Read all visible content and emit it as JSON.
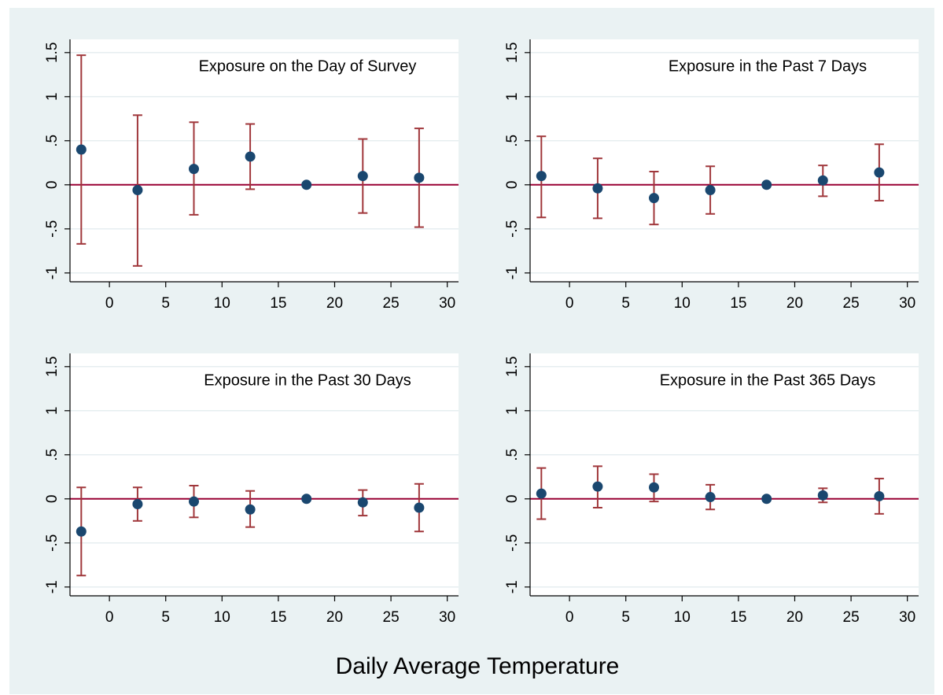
{
  "xlabel": "Daily Average Temperature",
  "chart_data": [
    {
      "type": "scatter",
      "title": "Exposure on the Day of Survey",
      "x": [
        -2.5,
        2.5,
        7.5,
        12.5,
        17.5,
        22.5,
        27.5
      ],
      "series": [
        {
          "color": "#1a476f",
          "error_color": "#a0373b",
          "values": [
            0.4,
            -0.06,
            0.18,
            0.32,
            0,
            0.1,
            0.08
          ],
          "ci_low": [
            -0.67,
            -0.92,
            -0.34,
            -0.05,
            null,
            -0.32,
            -0.48
          ],
          "ci_high": [
            1.47,
            0.79,
            0.71,
            0.69,
            null,
            0.52,
            0.64
          ]
        }
      ],
      "xlim": [
        -3.5,
        31
      ],
      "xticks": [
        0,
        5,
        10,
        15,
        20,
        25,
        30
      ],
      "ylim": [
        -1.1,
        1.65
      ],
      "yticks": [
        -1,
        {
          "value": -0.5,
          "label": "-.5"
        },
        0,
        {
          "value": 0.5,
          "label": ".5"
        },
        1,
        1.5
      ],
      "grid": true,
      "hline": 0,
      "hline_color": "#990033"
    },
    {
      "type": "scatter",
      "title": "Exposure in the Past 7 Days",
      "x": [
        -2.5,
        2.5,
        7.5,
        12.5,
        17.5,
        22.5,
        27.5
      ],
      "series": [
        {
          "color": "#1a476f",
          "error_color": "#a0373b",
          "values": [
            0.1,
            -0.04,
            -0.15,
            -0.06,
            0,
            0.05,
            0.14
          ],
          "ci_low": [
            -0.37,
            -0.38,
            -0.45,
            -0.33,
            null,
            -0.13,
            -0.18
          ],
          "ci_high": [
            0.55,
            0.3,
            0.15,
            0.21,
            null,
            0.22,
            0.46
          ]
        }
      ],
      "xlim": [
        -3.5,
        31
      ],
      "xticks": [
        0,
        5,
        10,
        15,
        20,
        25,
        30
      ],
      "ylim": [
        -1.1,
        1.65
      ],
      "yticks": [
        -1,
        {
          "value": -0.5,
          "label": "-.5"
        },
        0,
        {
          "value": 0.5,
          "label": ".5"
        },
        1,
        1.5
      ],
      "grid": true,
      "hline": 0,
      "hline_color": "#990033"
    },
    {
      "type": "scatter",
      "title": "Exposure in the Past 30 Days",
      "x": [
        -2.5,
        2.5,
        7.5,
        12.5,
        17.5,
        22.5,
        27.5
      ],
      "series": [
        {
          "color": "#1a476f",
          "error_color": "#a0373b",
          "values": [
            -0.37,
            -0.06,
            -0.03,
            -0.12,
            0,
            -0.04,
            -0.1
          ],
          "ci_low": [
            -0.87,
            -0.25,
            -0.21,
            -0.32,
            null,
            -0.19,
            -0.37
          ],
          "ci_high": [
            0.13,
            0.13,
            0.15,
            0.09,
            null,
            0.1,
            0.17
          ]
        }
      ],
      "xlim": [
        -3.5,
        31
      ],
      "xticks": [
        0,
        5,
        10,
        15,
        20,
        25,
        30
      ],
      "ylim": [
        -1.1,
        1.65
      ],
      "yticks": [
        -1,
        {
          "value": -0.5,
          "label": "-.5"
        },
        0,
        {
          "value": 0.5,
          "label": ".5"
        },
        1,
        1.5
      ],
      "grid": true,
      "hline": 0,
      "hline_color": "#990033"
    },
    {
      "type": "scatter",
      "title": "Exposure in the Past 365 Days",
      "x": [
        -2.5,
        2.5,
        7.5,
        12.5,
        17.5,
        22.5,
        27.5
      ],
      "series": [
        {
          "color": "#1a476f",
          "error_color": "#a0373b",
          "values": [
            0.06,
            0.14,
            0.13,
            0.02,
            0,
            0.04,
            0.03
          ],
          "ci_low": [
            -0.23,
            -0.1,
            -0.03,
            -0.12,
            null,
            -0.04,
            -0.17
          ],
          "ci_high": [
            0.35,
            0.37,
            0.28,
            0.16,
            null,
            0.12,
            0.23
          ]
        }
      ],
      "xlim": [
        -3.5,
        31
      ],
      "xticks": [
        0,
        5,
        10,
        15,
        20,
        25,
        30
      ],
      "ylim": [
        -1.1,
        1.65
      ],
      "yticks": [
        -1,
        {
          "value": -0.5,
          "label": "-.5"
        },
        0,
        {
          "value": 0.5,
          "label": ".5"
        },
        1,
        1.5
      ],
      "grid": true,
      "hline": 0,
      "hline_color": "#990033"
    }
  ]
}
